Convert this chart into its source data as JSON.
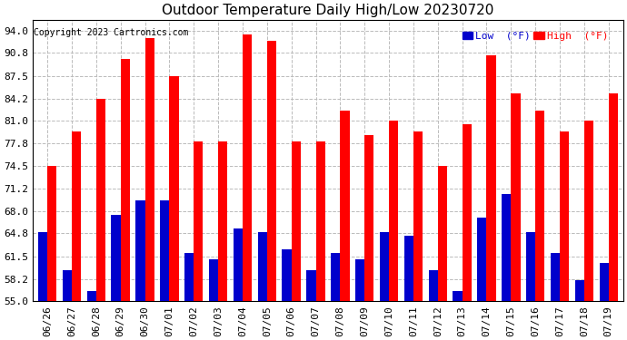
{
  "title": "Outdoor Temperature Daily High/Low 20230720",
  "copyright": "Copyright 2023 Cartronics.com",
  "legend_low": "Low  (°F)",
  "legend_high": "High  (°F)",
  "dates": [
    "06/26",
    "06/27",
    "06/28",
    "06/29",
    "06/30",
    "07/01",
    "07/02",
    "07/03",
    "07/04",
    "07/05",
    "07/06",
    "07/07",
    "07/08",
    "07/09",
    "07/10",
    "07/11",
    "07/12",
    "07/13",
    "07/14",
    "07/15",
    "07/16",
    "07/17",
    "07/18",
    "07/19"
  ],
  "highs": [
    74.5,
    79.5,
    84.2,
    90.0,
    93.0,
    87.5,
    78.0,
    78.0,
    93.5,
    92.5,
    78.0,
    78.0,
    82.5,
    79.0,
    81.0,
    79.5,
    74.5,
    80.5,
    90.5,
    85.0,
    82.5,
    79.5,
    81.0,
    85.0
  ],
  "lows": [
    65.0,
    59.5,
    56.5,
    67.5,
    69.5,
    69.5,
    62.0,
    61.0,
    65.5,
    65.0,
    62.5,
    59.5,
    62.0,
    61.0,
    65.0,
    64.5,
    59.5,
    56.5,
    67.0,
    70.5,
    65.0,
    62.0,
    58.0,
    60.5
  ],
  "high_color": "#ff0000",
  "low_color": "#0000cc",
  "ylim_min": 55.0,
  "ylim_max": 95.6,
  "yticks": [
    55.0,
    58.2,
    61.5,
    64.8,
    68.0,
    71.2,
    74.5,
    77.8,
    81.0,
    84.2,
    87.5,
    90.8,
    94.0
  ],
  "background_color": "#ffffff",
  "plot_bg_color": "#ffffff",
  "grid_color": "#bbbbbb",
  "title_fontsize": 11,
  "tick_fontsize": 8,
  "bar_width": 0.38
}
